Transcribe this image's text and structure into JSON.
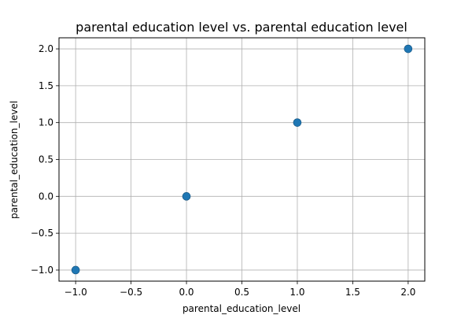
{
  "chart_data": {
    "type": "scatter",
    "title": "parental education level vs. parental education level",
    "xlabel": "parental_education_level",
    "ylabel": "parental_education_level",
    "xlim": [
      -1.15,
      2.15
    ],
    "ylim": [
      -1.15,
      2.15
    ],
    "xticks": [
      -1.0,
      -0.5,
      0.0,
      0.5,
      1.0,
      1.5,
      2.0
    ],
    "xtick_labels": [
      "−1.0",
      "−0.5",
      "0.0",
      "0.5",
      "1.0",
      "1.5",
      "2.0"
    ],
    "yticks": [
      -1.0,
      -0.5,
      0.0,
      0.5,
      1.0,
      1.5,
      2.0
    ],
    "ytick_labels": [
      "−1.0",
      "−0.5",
      "0.0",
      "0.5",
      "1.0",
      "1.5",
      "2.0"
    ],
    "grid": true,
    "series": [
      {
        "x": [
          -1.0,
          0.0,
          1.0,
          2.0
        ],
        "y": [
          -1.0,
          0.0,
          1.0,
          2.0
        ],
        "color": "#1f77b4"
      }
    ]
  }
}
